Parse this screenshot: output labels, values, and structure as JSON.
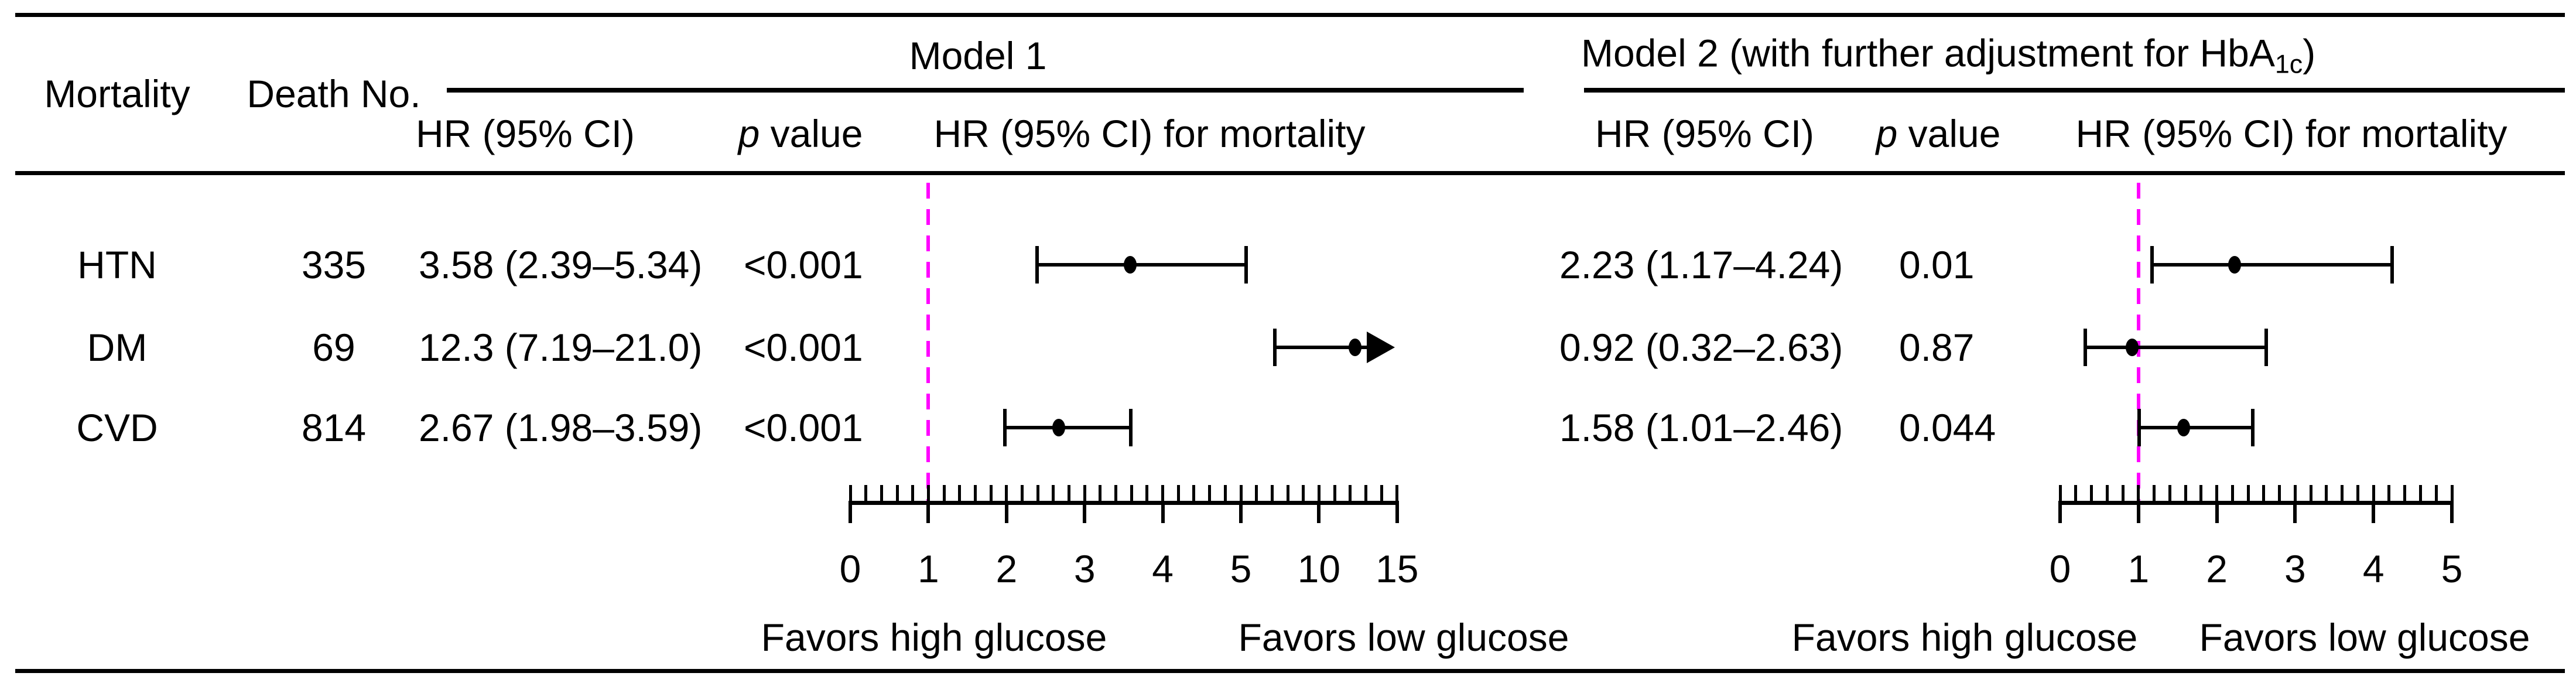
{
  "figure": {
    "headers": {
      "mortality": "Mortality",
      "death_no": "Death No.",
      "model1_title": "Model 1",
      "model2_title_prefix": "Model 2 (with further adjustment for HbA",
      "model2_title_sub": "1c",
      "model2_title_suffix": ")",
      "hr_ci": "HR (95% CI)",
      "hr_ci_2": "HR (95% CI)",
      "p_italic": "p",
      "p_rest": " value",
      "hr_ci_mortality": "HR (95% CI) for mortality",
      "hr_ci_mortality_2": "HR (95% CI) for mortality"
    },
    "rows": [
      {
        "mortality": "HTN",
        "death_no": "335",
        "m1_hr_ci": "3.58 (2.39–5.34)",
        "m1_p": "<0.001",
        "m2_hr_ci": "2.23 (1.17–4.24)",
        "m2_p": "0.01"
      },
      {
        "mortality": "DM",
        "death_no": "69",
        "m1_hr_ci": "12.3 (7.19–21.0)",
        "m1_p": "<0.001",
        "m2_hr_ci": "0.92 (0.32–2.63)",
        "m2_p": "0.87"
      },
      {
        "mortality": "CVD",
        "death_no": "814",
        "m1_hr_ci": "2.67 (1.98–3.59)",
        "m1_p": "<0.001",
        "m2_hr_ci": "1.58 (1.01–2.46)",
        "m2_p": "0.044"
      }
    ]
  },
  "chart_data": [
    {
      "type": "forest",
      "panel_title": "Model 1",
      "x_axis": {
        "tick_labels": [
          "0",
          "1",
          "2",
          "3",
          "4",
          "5",
          "10",
          "15"
        ],
        "tick_values": [
          0,
          1,
          2,
          3,
          4,
          5,
          10,
          15
        ],
        "scale_note": "segmented: 0–5 at 1 per division, 5–15 compressed at 5 per division",
        "minor_ticks_per_division": 5
      },
      "ref_line_hr": 1,
      "series": [
        {
          "label": "HTN",
          "hr": 3.58,
          "ci_low": 2.39,
          "ci_high": 5.34
        },
        {
          "label": "DM",
          "hr": 12.3,
          "ci_low": 7.19,
          "ci_high": 21.0,
          "ci_high_arrow": true
        },
        {
          "label": "CVD",
          "hr": 2.67,
          "ci_low": 1.98,
          "ci_high": 3.59
        }
      ],
      "favors_left": "Favors high glucose",
      "favors_right": "Favors low glucose"
    },
    {
      "type": "forest",
      "panel_title": "Model 2 (with further adjustment for HbA1c)",
      "x_axis": {
        "tick_labels": [
          "0",
          "1",
          "2",
          "3",
          "4",
          "5"
        ],
        "tick_values": [
          0,
          1,
          2,
          3,
          4,
          5
        ],
        "scale_note": "linear 0–5",
        "minor_ticks_per_division": 5
      },
      "ref_line_hr": 1,
      "series": [
        {
          "label": "HTN",
          "hr": 2.23,
          "ci_low": 1.17,
          "ci_high": 4.24
        },
        {
          "label": "DM",
          "hr": 0.92,
          "ci_low": 0.32,
          "ci_high": 2.63
        },
        {
          "label": "CVD",
          "hr": 1.58,
          "ci_low": 1.01,
          "ci_high": 2.46
        }
      ],
      "favors_left": "Favors high glucose",
      "favors_right": "Favors low glucose"
    }
  ],
  "colors": {
    "ink": "#000000",
    "ref_line": "#FF00FF",
    "background": "#FFFFFF"
  }
}
